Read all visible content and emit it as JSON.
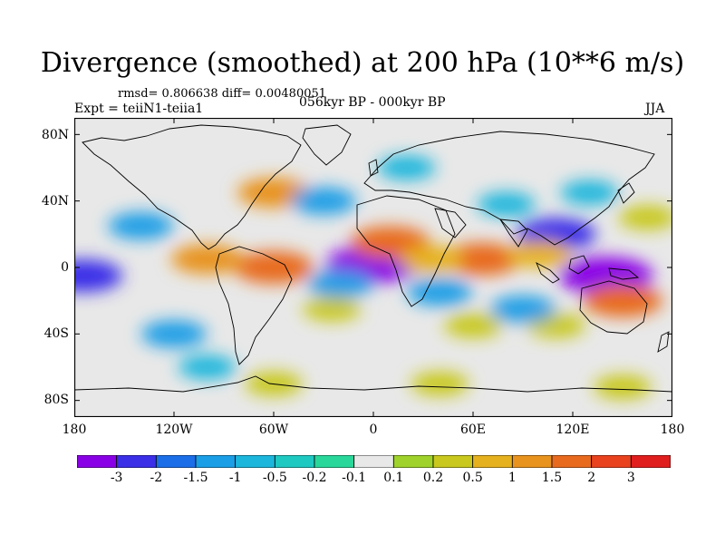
{
  "title": "Divergence (smoothed) at 200 hPa (10**6 m/s)",
  "stats": "rmsd= 0.806638 diff= 0.00480051",
  "experiment": "Expt = teiiN1-teiia1",
  "period": "056kyr BP - 000kyr BP",
  "season": "JJA",
  "y_ticks": [
    "80N",
    "40N",
    "0",
    "40S",
    "80S"
  ],
  "x_ticks": [
    "180",
    "120W",
    "60W",
    "0",
    "60E",
    "120E",
    "180"
  ],
  "colorbar": {
    "labels": [
      "-3",
      "-2",
      "-1.5",
      "-1",
      "-0.5",
      "-0.2",
      "-0.1",
      "0.1",
      "0.2",
      "0.5",
      "1",
      "1.5",
      "2",
      "3"
    ],
    "colors": [
      "#8a00e6",
      "#3b2fe8",
      "#1c6ee8",
      "#1a9ee6",
      "#1cb6dc",
      "#1ec9c2",
      "#2ad79a",
      "#e8e8e8",
      "#9fd22a",
      "#c8c81e",
      "#e6b11e",
      "#e8931e",
      "#e86a1e",
      "#e8421e",
      "#e01e1e"
    ]
  },
  "chart_data": {
    "type": "heatmap",
    "title": "Divergence (smoothed) at 200 hPa (10**6 m/s)",
    "xlabel": "",
    "ylabel": "",
    "xlim": [
      -180,
      180
    ],
    "ylim": [
      -90,
      90
    ],
    "x_ticks": [
      "180",
      "120W",
      "60W",
      "0",
      "60E",
      "120E",
      "180"
    ],
    "y_ticks": [
      "80N",
      "40N",
      "0",
      "40S",
      "80S"
    ],
    "levels": [
      -3,
      -2,
      -1.5,
      -1,
      -0.5,
      -0.2,
      -0.1,
      0.1,
      0.2,
      0.5,
      1,
      1.5,
      2,
      3
    ],
    "blobs": [
      {
        "lon": 0,
        "lat": 2,
        "value": -3
      },
      {
        "lon": 140,
        "lat": -5,
        "value": -3
      },
      {
        "lon": 110,
        "lat": 20,
        "value": -2
      },
      {
        "lon": -175,
        "lat": -5,
        "value": -2
      },
      {
        "lon": -60,
        "lat": 0,
        "value": 2
      },
      {
        "lon": 10,
        "lat": 15,
        "value": 2
      },
      {
        "lon": 65,
        "lat": 5,
        "value": 2
      },
      {
        "lon": 150,
        "lat": -20,
        "value": 2
      },
      {
        "lon": -100,
        "lat": 5,
        "value": 1.5
      },
      {
        "lon": -60,
        "lat": 45,
        "value": 1.5
      },
      {
        "lon": 35,
        "lat": 5,
        "value": 1
      },
      {
        "lon": 100,
        "lat": 8,
        "value": 1
      },
      {
        "lon": -25,
        "lat": -25,
        "value": 0.5
      },
      {
        "lon": 60,
        "lat": -35,
        "value": 0.5
      },
      {
        "lon": 110,
        "lat": -35,
        "value": 0.5
      },
      {
        "lon": 165,
        "lat": 30,
        "value": 0.5
      },
      {
        "lon": -120,
        "lat": -40,
        "value": -1
      },
      {
        "lon": -30,
        "lat": 40,
        "value": -1
      },
      {
        "lon": -20,
        "lat": -10,
        "value": -1
      },
      {
        "lon": -140,
        "lat": 25,
        "value": -1
      },
      {
        "lon": 40,
        "lat": -15,
        "value": -1
      },
      {
        "lon": 90,
        "lat": -25,
        "value": -1
      },
      {
        "lon": 80,
        "lat": 38,
        "value": -0.5
      },
      {
        "lon": 130,
        "lat": 45,
        "value": -0.5
      },
      {
        "lon": -100,
        "lat": -60,
        "value": -0.5
      },
      {
        "lon": 20,
        "lat": 60,
        "value": -0.5
      },
      {
        "lon": -60,
        "lat": -70,
        "value": 0.5
      },
      {
        "lon": 40,
        "lat": -70,
        "value": 0.5
      },
      {
        "lon": 150,
        "lat": -72,
        "value": 0.5
      }
    ]
  }
}
